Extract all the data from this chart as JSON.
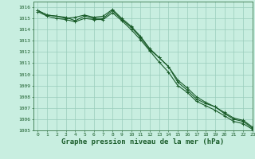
{
  "xlabel": "Graphe pression niveau de la mer (hPa)",
  "background_color": "#c8eee0",
  "grid_color": "#99ccbb",
  "line_color": "#1a5c2a",
  "ylim": [
    1005,
    1016.5
  ],
  "xlim": [
    -0.5,
    23
  ],
  "yticks": [
    1005,
    1006,
    1007,
    1008,
    1009,
    1010,
    1011,
    1012,
    1013,
    1014,
    1015,
    1016
  ],
  "xticks": [
    0,
    1,
    2,
    3,
    4,
    5,
    6,
    7,
    8,
    9,
    10,
    11,
    12,
    13,
    14,
    15,
    16,
    17,
    18,
    19,
    20,
    21,
    22,
    23
  ],
  "series": [
    [
      1015.7,
      1015.3,
      1015.2,
      1015.1,
      1014.8,
      1015.2,
      1015.0,
      1015.0,
      1015.7,
      1014.9,
      1014.2,
      1013.3,
      1012.2,
      1011.5,
      1010.7,
      1009.3,
      1008.6,
      1007.8,
      1007.4,
      1007.1,
      1006.5,
      1006.0,
      1005.8,
      1005.2
    ],
    [
      1015.7,
      1015.3,
      1015.2,
      1015.0,
      1015.1,
      1015.3,
      1015.1,
      1015.2,
      1015.8,
      1015.0,
      1014.3,
      1013.4,
      1012.3,
      1011.5,
      1010.7,
      1009.5,
      1008.8,
      1008.0,
      1007.5,
      1007.1,
      1006.6,
      1006.1,
      1005.9,
      1005.3
    ],
    [
      1015.6,
      1015.2,
      1015.0,
      1014.9,
      1014.7,
      1015.0,
      1014.9,
      1014.9,
      1015.5,
      1014.8,
      1014.0,
      1013.1,
      1012.1,
      1011.1,
      1010.2,
      1009.0,
      1008.4,
      1007.6,
      1007.2,
      1006.8,
      1006.3,
      1005.8,
      1005.6,
      1005.1
    ]
  ],
  "marker": "+",
  "markersize": 3,
  "linewidth": 0.8,
  "tick_fontsize": 4.5,
  "label_fontsize": 6.5,
  "label_fontweight": "bold",
  "label_fontfamily": "monospace"
}
